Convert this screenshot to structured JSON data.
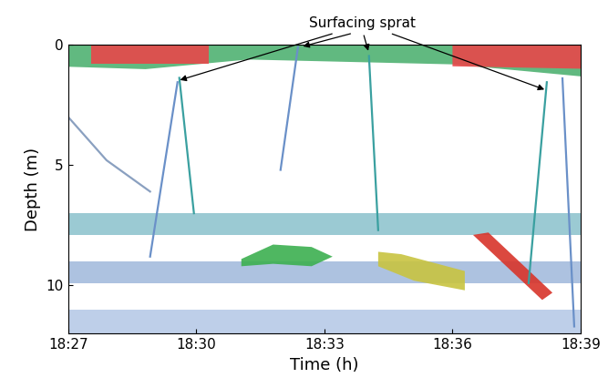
{
  "chart_data": {
    "type": "echogram",
    "xlabel": "Time (h)",
    "ylabel": "Depth (m)",
    "xlim": [
      18.45,
      18.65
    ],
    "xticks": [
      {
        "value": 18.45,
        "label": "18:27"
      },
      {
        "value": 18.5,
        "label": "18:30"
      },
      {
        "value": 18.55,
        "label": "18:33"
      },
      {
        "value": 18.6,
        "label": "18:36"
      },
      {
        "value": 18.65,
        "label": "18:39"
      }
    ],
    "ylim": [
      12,
      0
    ],
    "yticks": [
      0,
      5,
      10
    ],
    "surface": {
      "x": [
        18.45,
        18.48,
        18.52,
        18.56,
        18.6,
        18.65
      ],
      "depth": [
        0.9,
        1.0,
        0.6,
        0.7,
        0.8,
        1.3
      ],
      "color": "#3aa860"
    },
    "layers": [
      {
        "top": 7.0,
        "bottom": 7.9,
        "color": "#4a9fb0"
      },
      {
        "top": 9.0,
        "bottom": 9.9,
        "color": "#6a90c8"
      },
      {
        "top": 11.0,
        "bottom": 12.0,
        "color": "#8aa8d8"
      }
    ],
    "schools": [
      {
        "color": "#e8474a",
        "x": [
          18.459,
          18.505,
          18.505,
          18.459
        ],
        "y": [
          0,
          0,
          0.8,
          0.8
        ]
      },
      {
        "color": "#e8474a",
        "x": [
          18.6,
          18.65,
          18.65,
          18.6
        ],
        "y": [
          0,
          0,
          1.0,
          0.9
        ]
      },
      {
        "color": "#3cb050",
        "x": [
          18.5176,
          18.53,
          18.545,
          18.5532,
          18.545,
          18.53,
          18.5176
        ],
        "y": [
          8.9,
          8.3,
          8.4,
          8.8,
          9.2,
          9.1,
          9.2
        ]
      },
      {
        "color": "#c8c440",
        "x": [
          18.571,
          18.58,
          18.6048,
          18.6048,
          18.585,
          18.571
        ],
        "y": [
          8.6,
          8.7,
          9.4,
          10.2,
          9.8,
          9.2
        ]
      },
      {
        "color": "#d8342a",
        "x": [
          18.608,
          18.614,
          18.639,
          18.635
        ],
        "y": [
          7.9,
          7.8,
          10.3,
          10.6
        ]
      }
    ],
    "tracks": [
      {
        "color": "#3aa0a0",
        "x": [
          18.4991,
          18.4934
        ],
        "y": [
          7.0,
          1.38
        ]
      },
      {
        "color": "#6a90c8",
        "x": [
          18.482,
          18.4927
        ],
        "y": [
          8.8,
          1.56
        ]
      },
      {
        "color": "#6a90c8",
        "x": [
          18.5329,
          18.5397
        ],
        "y": [
          5.2,
          0.1
        ]
      },
      {
        "color": "#3aa0a0",
        "x": [
          18.571,
          18.5674
        ],
        "y": [
          7.7,
          0.47
        ]
      },
      {
        "color": "#3aa0a0",
        "x": [
          18.6297,
          18.6368
        ],
        "y": [
          9.9,
          1.56
        ]
      },
      {
        "color": "#6a90c8",
        "x": [
          18.6429,
          18.6475
        ],
        "y": [
          1.4,
          11.7
        ]
      },
      {
        "color": "#8aa0c0",
        "x": [
          18.45,
          18.465,
          18.482
        ],
        "y": [
          3.0,
          4.8,
          6.1
        ]
      }
    ],
    "annotation": {
      "text": "Surfacing sprat",
      "x": [
        18.4927,
        18.5407,
        18.5674,
        18.6368
      ],
      "y": [
        1.5,
        0.1,
        0.36,
        1.9
      ]
    }
  }
}
